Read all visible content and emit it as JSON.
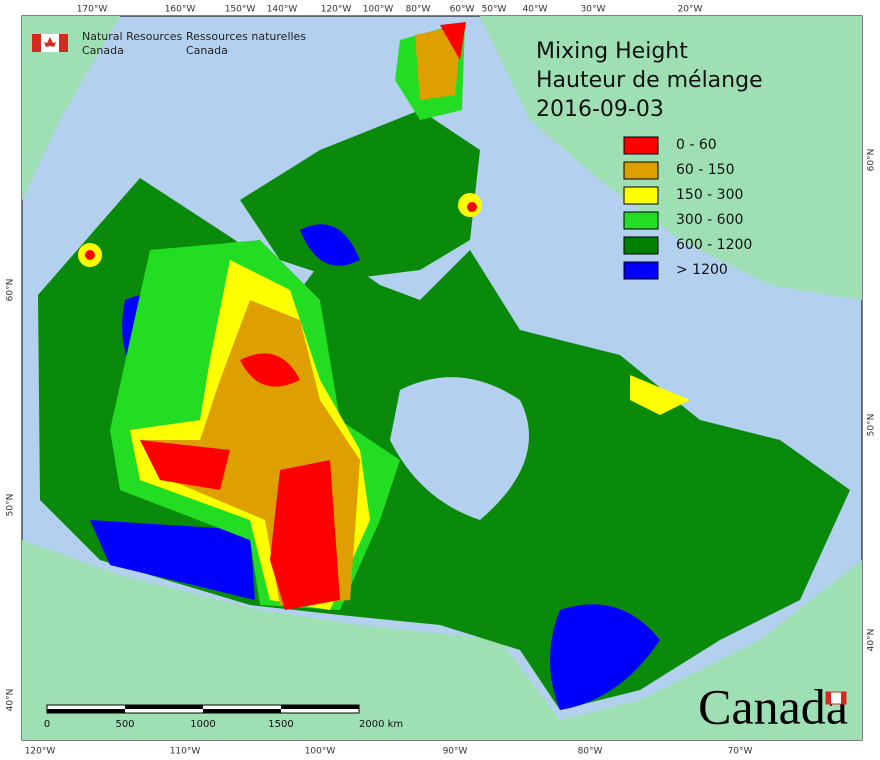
{
  "header": {
    "org_en": [
      "Natural Resources",
      "Canada"
    ],
    "org_fr": [
      "Ressources naturelles",
      "Canada"
    ]
  },
  "title": [
    "Mixing Height",
    "Hauteur de mélange",
    "2016-09-03"
  ],
  "legend": [
    {
      "label": "0 - 60",
      "color": "#ff0000"
    },
    {
      "label": "60 - 150",
      "color": "#dea000"
    },
    {
      "label": "150 - 300",
      "color": "#ffff00"
    },
    {
      "label": "300 - 600",
      "color": "#22dd22"
    },
    {
      "label": "600 - 1200",
      "color": "#008000"
    },
    {
      "label": "> 1200",
      "color": "#0000ff"
    }
  ],
  "graticule": {
    "top": [
      "170°W",
      "160°W",
      "150°W",
      "140°W",
      "120°W",
      "100°W",
      "80°W",
      "60°W",
      "50°W",
      "40°W",
      "30°W",
      "20°W"
    ],
    "bottom": [
      "120°W",
      "110°W",
      "100°W",
      "90°W",
      "80°W",
      "70°W"
    ],
    "left": [
      "60°N",
      "50°N",
      "40°N"
    ],
    "right": [
      "60°N",
      "50°N",
      "40°N"
    ]
  },
  "scale_bar": [
    "0",
    "500",
    "1000",
    "1500",
    "2000 km"
  ],
  "wordmark": "Canada"
}
